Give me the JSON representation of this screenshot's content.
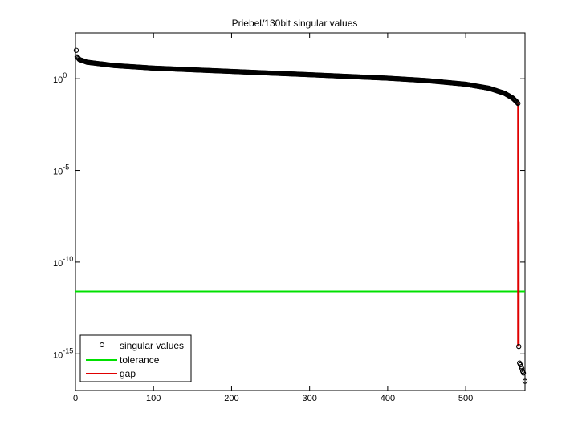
{
  "chart_data": {
    "type": "scatter",
    "title": "Priebel/130bit singular values",
    "xlabel": "",
    "ylabel": "",
    "xlim": [
      0,
      576
    ],
    "ylim_log10": [
      -17,
      2.5
    ],
    "y_scale": "log",
    "x_ticks": [
      0,
      100,
      200,
      300,
      400,
      500
    ],
    "x_tick_labels": [
      "0",
      "100",
      "200",
      "300",
      "400",
      "500"
    ],
    "y_ticks_log10": [
      0,
      -5,
      -10,
      -15
    ],
    "y_tick_labels": [
      {
        "base": "10",
        "exp": "0"
      },
      {
        "base": "10",
        "exp": "-5"
      },
      {
        "base": "10",
        "exp": "-10"
      },
      {
        "base": "10",
        "exp": "-15"
      }
    ],
    "grid": false,
    "legend_position": "bottom-left",
    "series": [
      {
        "name": "singular values",
        "marker": "circle",
        "color": "#000000",
        "curve": {
          "count": 567,
          "x_anchors": [
            1,
            2,
            5,
            15,
            50,
            100,
            200,
            300,
            400,
            450,
            500,
            530,
            550,
            560,
            565,
            567
          ],
          "log10_anchors": [
            1.55,
            1.2,
            1.05,
            0.9,
            0.72,
            0.58,
            0.4,
            0.22,
            0.03,
            -0.1,
            -0.3,
            -0.52,
            -0.8,
            -1.05,
            -1.25,
            -1.35
          ],
          "tail": [
            {
              "x": 568,
              "log10": -14.6
            },
            {
              "x": 569,
              "log10": -15.5
            },
            {
              "x": 570,
              "log10": -15.6
            },
            {
              "x": 571,
              "log10": -15.7
            },
            {
              "x": 572,
              "log10": -15.8
            },
            {
              "x": 573,
              "log10": -15.95
            },
            {
              "x": 574,
              "log10": -16.05
            },
            {
              "x": 576,
              "log10": -16.5
            }
          ]
        }
      },
      {
        "name": "tolerance",
        "color": "#00e000",
        "y_log10": -11.6
      },
      {
        "name": "gap",
        "color": "#e00000",
        "segments": [
          {
            "x": 567,
            "log10_from": -1.35,
            "log10_to": -14.6
          },
          {
            "x": 568,
            "log10_from": -7.8,
            "log10_to": -14.6
          }
        ]
      }
    ]
  }
}
